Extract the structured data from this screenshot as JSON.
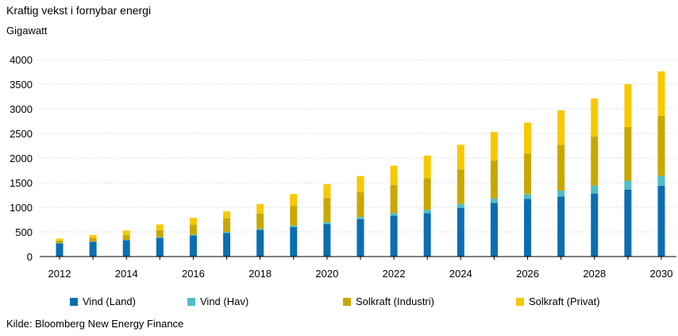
{
  "header": {
    "title": "Kraftig vekst i fornybar energi",
    "subtitle": "Gigawatt"
  },
  "footer": {
    "source": "Kilde: Bloomberg New Energy Finance"
  },
  "chart_data": {
    "type": "bar",
    "stacked": true,
    "title": "Kraftig vekst i fornybar energi",
    "ylabel": "Gigawatt",
    "xlabel": "",
    "ylim": [
      0,
      4000
    ],
    "yticks": [
      0,
      500,
      1000,
      1500,
      2000,
      2500,
      3000,
      3500,
      4000
    ],
    "xtick_labels": [
      "2012",
      "2014",
      "2016",
      "2018",
      "2020",
      "2022",
      "2024",
      "2026",
      "2028",
      "2030"
    ],
    "categories": [
      "2012",
      "2013",
      "2014",
      "2015",
      "2016",
      "2017",
      "2018",
      "2019",
      "2020",
      "2021",
      "2022",
      "2023",
      "2024",
      "2025",
      "2026",
      "2027",
      "2028",
      "2029",
      "2030"
    ],
    "legend_position": "bottom",
    "grid": "horizontal",
    "series": [
      {
        "name": "Vind (Land)",
        "color": "#0a6eb0",
        "values": [
          270,
          300,
          330,
          380,
          430,
          480,
          540,
          600,
          660,
          760,
          830,
          880,
          990,
          1090,
          1170,
          1220,
          1280,
          1360,
          1440
        ]
      },
      {
        "name": "Vind (Hav)",
        "color": "#4fbfc4",
        "values": [
          5,
          7,
          9,
          12,
          15,
          20,
          25,
          30,
          40,
          45,
          55,
          70,
          80,
          90,
          100,
          120,
          160,
          180,
          200
        ]
      },
      {
        "name": "Solkraft (Industri)",
        "color": "#c8a800",
        "values": [
          50,
          70,
          100,
          140,
          200,
          280,
          310,
          400,
          490,
          500,
          570,
          640,
          700,
          770,
          820,
          930,
          1000,
          1090,
          1220
        ]
      },
      {
        "name": "Solkraft (Privat)",
        "color": "#f8c800",
        "values": [
          40,
          60,
          90,
          120,
          140,
          140,
          190,
          240,
          280,
          330,
          390,
          460,
          500,
          580,
          630,
          700,
          770,
          870,
          900
        ]
      }
    ]
  }
}
